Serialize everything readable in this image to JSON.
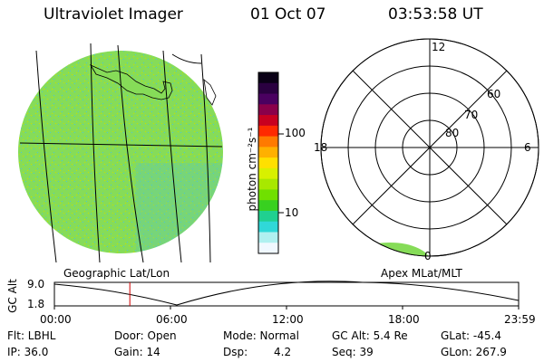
{
  "header": {
    "instrument": "Ultraviolet Imager",
    "date": "01 Oct 07",
    "time": "03:53:58 UT"
  },
  "colorbar": {
    "unit_label": "photon cm⁻²s⁻¹",
    "tick_100": "100",
    "tick_10": "10",
    "colors": [
      "#0a0016",
      "#2a0040",
      "#4a0060",
      "#8a004a",
      "#c80020",
      "#ff2a00",
      "#ff7a00",
      "#ffb000",
      "#ffe000",
      "#d8f000",
      "#a8e800",
      "#70e000",
      "#38d020",
      "#20d090",
      "#30d8d8",
      "#b0f0f0",
      "#f0f8ff"
    ]
  },
  "geo_map": {
    "label": "Geographic Lat/Lon",
    "fill_color": "#7ed957",
    "speckle_color": "#4fc3d6"
  },
  "polar_plot": {
    "label": "Apex MLat/MLT",
    "mlt_top": "12",
    "mlt_left": "18",
    "mlt_right": "6",
    "mlt_bottom": "0",
    "lat_60": "60",
    "lat_70": "70",
    "lat_80": "80"
  },
  "altitude_plot": {
    "axis_label": "GC Alt",
    "y_high": "9.0",
    "y_low": "1.8",
    "x_ticks": [
      "00:00",
      "06:00",
      "12:00",
      "18:00",
      "23:59"
    ],
    "marker_color": "#d00000",
    "marker_time_hours": 3.9
  },
  "status": {
    "filter": "Flt: LBHL",
    "ip": "IP: 36.0",
    "door": "Door: Open",
    "gain": "Gain: 14",
    "mode": "Mode: Normal",
    "dsp_label": "Dsp:",
    "dsp_value": "4.2",
    "gc_alt": "GC Alt: 5.4 Re",
    "seq": "Seq: 39",
    "glat": "GLat: -45.4",
    "glon": "GLon: 267.9"
  }
}
